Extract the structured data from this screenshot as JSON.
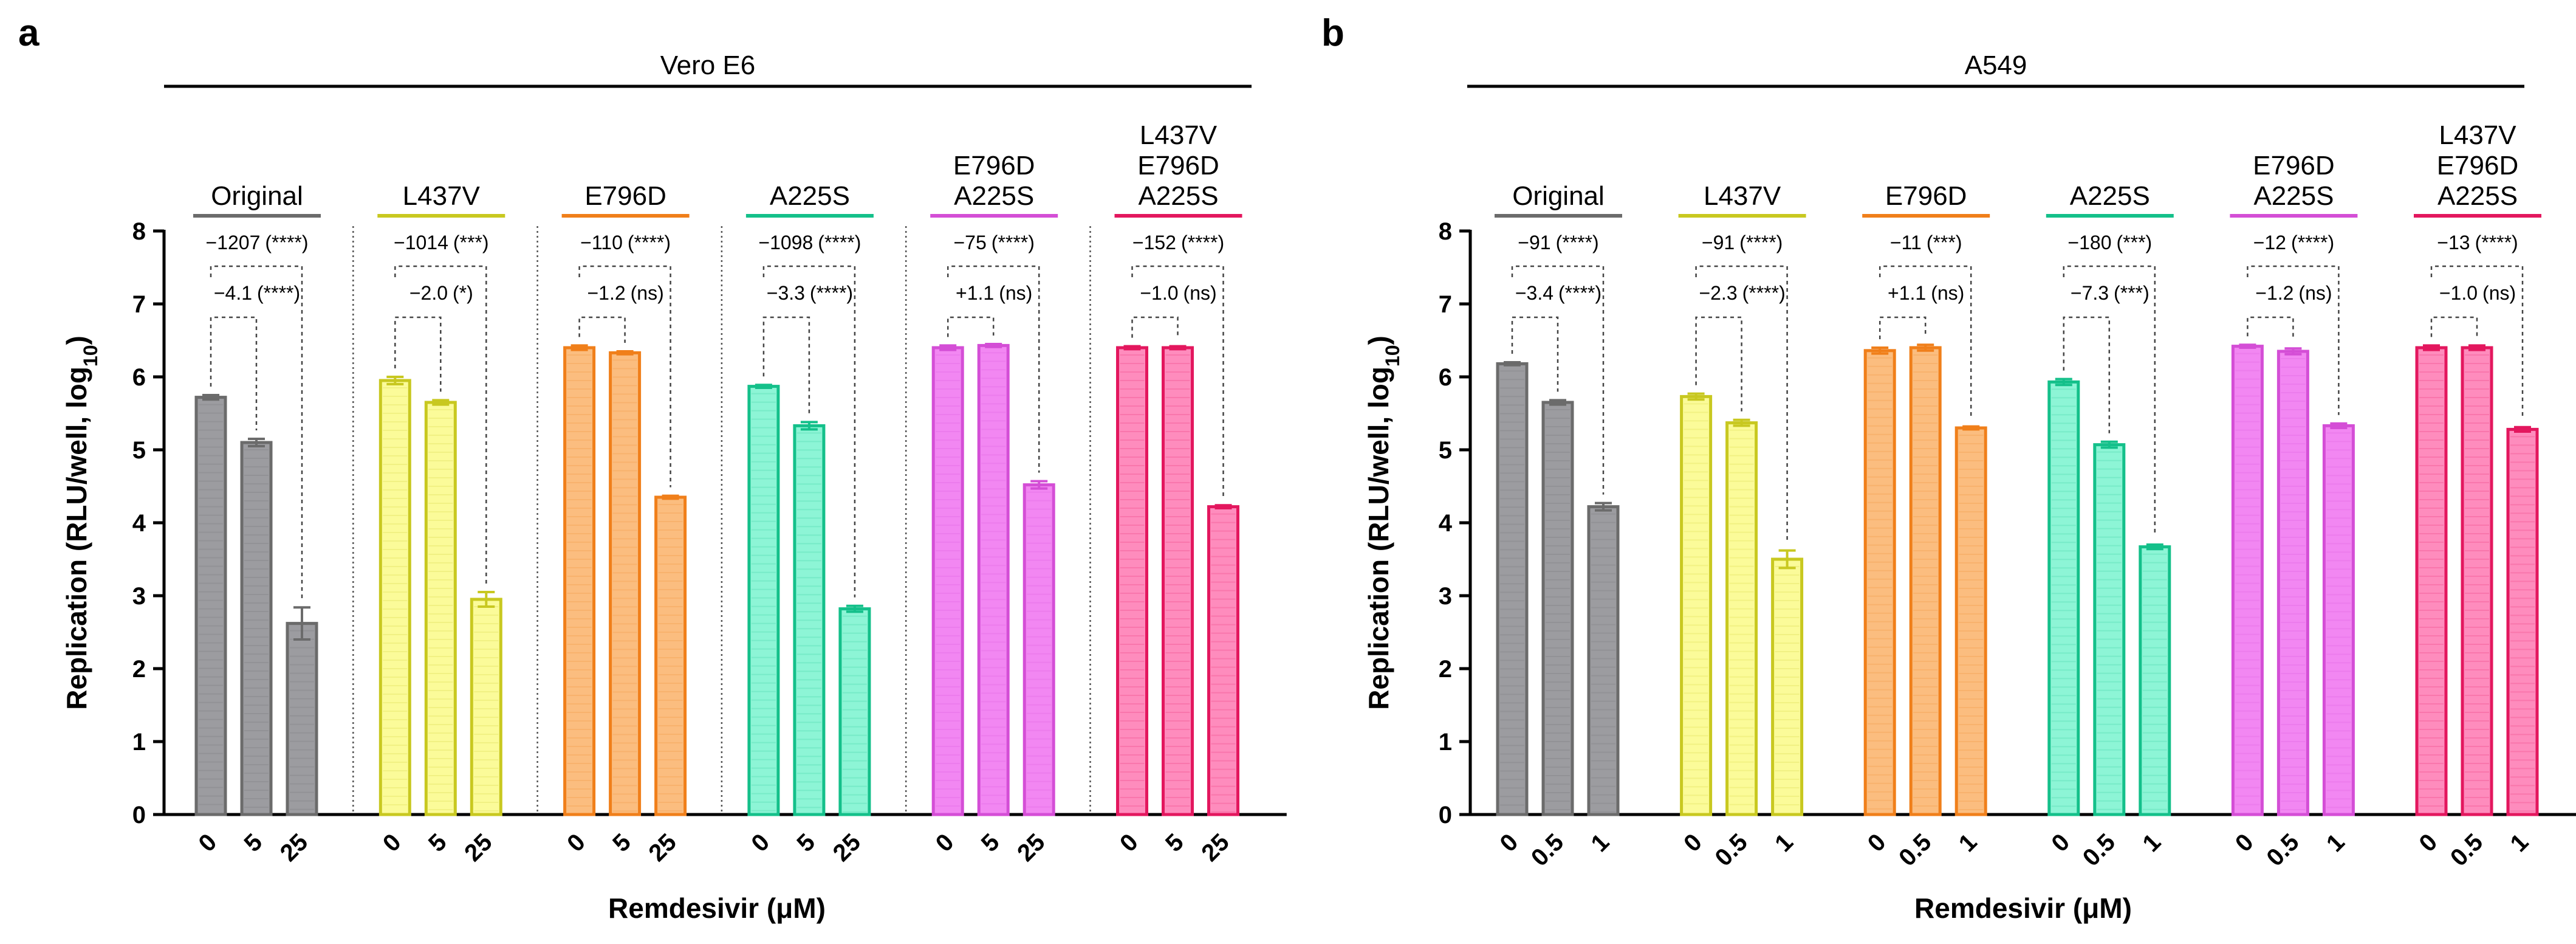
{
  "chart_data": [
    {
      "panel": "a",
      "type": "bar",
      "title": "Vero E6",
      "ylabel": "Replication (RLU/well, log10)",
      "ylabel_parts": {
        "main": "Replication (RLU/well, log",
        "sub": "10",
        "end": ")"
      },
      "xlabel": "Remdesivir (μM)",
      "ylim": [
        0,
        8
      ],
      "yticks": [
        "0",
        "1",
        "2",
        "3",
        "4",
        "5",
        "6",
        "7",
        "8"
      ],
      "doses": [
        "0",
        "5",
        "25"
      ],
      "groups": [
        {
          "label": [
            "Original"
          ],
          "color": "#6b6b6b",
          "fill": "#9c9ca0",
          "values": [
            5.72,
            5.1,
            2.62
          ],
          "errors": [
            0.03,
            0.05,
            0.22
          ],
          "ann_top": "−1207",
          "ann_top_sig": "(****)",
          "ann_bot": "−4.1",
          "ann_bot_sig": "(****)"
        },
        {
          "label": [
            "L437V"
          ],
          "color": "#c8c820",
          "fill": "#fbfb99",
          "values": [
            5.95,
            5.65,
            2.95
          ],
          "errors": [
            0.05,
            0.03,
            0.1
          ],
          "ann_top": "−1014",
          "ann_top_sig": "(***)",
          "ann_bot": "−2.0",
          "ann_bot_sig": "(*)"
        },
        {
          "label": [
            "E796D"
          ],
          "color": "#f07f1a",
          "fill": "#fbbd7f",
          "values": [
            6.4,
            6.33,
            4.35
          ],
          "errors": [
            0.03,
            0.02,
            0.02
          ],
          "ann_top": "−110",
          "ann_top_sig": "(****)",
          "ann_bot": "−1.2",
          "ann_bot_sig": "(ns)"
        },
        {
          "label": [
            "A225S"
          ],
          "color": "#14c08a",
          "fill": "#8df5d6",
          "values": [
            5.87,
            5.33,
            2.82
          ],
          "errors": [
            0.02,
            0.05,
            0.04
          ],
          "ann_top": "−1098",
          "ann_top_sig": "(****)",
          "ann_bot": "−3.3",
          "ann_bot_sig": "(****)"
        },
        {
          "label": [
            "E796D",
            "A225S"
          ],
          "color": "#d44ed6",
          "fill": "#f287f2",
          "values": [
            6.4,
            6.43,
            4.52
          ],
          "errors": [
            0.03,
            0.02,
            0.05
          ],
          "ann_top": "−75",
          "ann_top_sig": "(****)",
          "ann_bot": "+1.1",
          "ann_bot_sig": "(ns)"
        },
        {
          "label": [
            "L437V",
            "E796D",
            "A225S"
          ],
          "color": "#e3175e",
          "fill": "#fe8cbd",
          "values": [
            6.4,
            6.4,
            4.22
          ],
          "errors": [
            0.02,
            0.02,
            0.02
          ],
          "ann_top": "−152",
          "ann_top_sig": "(****)",
          "ann_bot": "−1.0",
          "ann_bot_sig": "(ns)"
        }
      ]
    },
    {
      "panel": "b",
      "type": "bar",
      "title": "A549",
      "ylabel": "Replication (RLU/well, log10)",
      "ylabel_parts": {
        "main": "Replication (RLU/well, log",
        "sub": "10",
        "end": ")"
      },
      "xlabel": "Remdesivir (μM)",
      "ylim": [
        0,
        8
      ],
      "yticks": [
        "0",
        "1",
        "2",
        "3",
        "4",
        "5",
        "6",
        "7",
        "8"
      ],
      "doses": [
        "0",
        "0.5",
        "1"
      ],
      "groups": [
        {
          "label": [
            "Original"
          ],
          "color": "#6b6b6b",
          "fill": "#9c9ca0",
          "values": [
            6.18,
            5.65,
            4.22
          ],
          "errors": [
            0.02,
            0.03,
            0.05
          ],
          "ann_top": "−91",
          "ann_top_sig": "(****)",
          "ann_bot": "−3.4",
          "ann_bot_sig": "(****)"
        },
        {
          "label": [
            "L437V"
          ],
          "color": "#c8c820",
          "fill": "#fbfb99",
          "values": [
            5.73,
            5.37,
            3.5
          ],
          "errors": [
            0.04,
            0.04,
            0.12
          ],
          "ann_top": "−91",
          "ann_top_sig": "(****)",
          "ann_bot": "−2.3",
          "ann_bot_sig": "(****)"
        },
        {
          "label": [
            "E796D"
          ],
          "color": "#f07f1a",
          "fill": "#fbbd7f",
          "values": [
            6.36,
            6.4,
            5.3
          ],
          "errors": [
            0.04,
            0.04,
            0.02
          ],
          "ann_top": "−11",
          "ann_top_sig": "(***)",
          "ann_bot": "+1.1",
          "ann_bot_sig": "(ns)"
        },
        {
          "label": [
            "A225S"
          ],
          "color": "#14c08a",
          "fill": "#8df5d6",
          "values": [
            5.93,
            5.07,
            3.67
          ],
          "errors": [
            0.04,
            0.04,
            0.03
          ],
          "ann_top": "−180",
          "ann_top_sig": "(***)",
          "ann_bot": "−7.3",
          "ann_bot_sig": "(***)"
        },
        {
          "label": [
            "E796D",
            "A225S"
          ],
          "color": "#d44ed6",
          "fill": "#f287f2",
          "values": [
            6.42,
            6.35,
            5.33
          ],
          "errors": [
            0.02,
            0.04,
            0.03
          ],
          "ann_top": "−12",
          "ann_top_sig": "(****)",
          "ann_bot": "−1.2",
          "ann_bot_sig": "(ns)"
        },
        {
          "label": [
            "L437V",
            "E796D",
            "A225S"
          ],
          "color": "#e3175e",
          "fill": "#fe8cbd",
          "values": [
            6.4,
            6.4,
            5.28
          ],
          "errors": [
            0.03,
            0.03,
            0.03
          ],
          "ann_top": "−13",
          "ann_top_sig": "(****)",
          "ann_bot": "−1.0",
          "ann_bot_sig": "(ns)"
        }
      ]
    }
  ]
}
